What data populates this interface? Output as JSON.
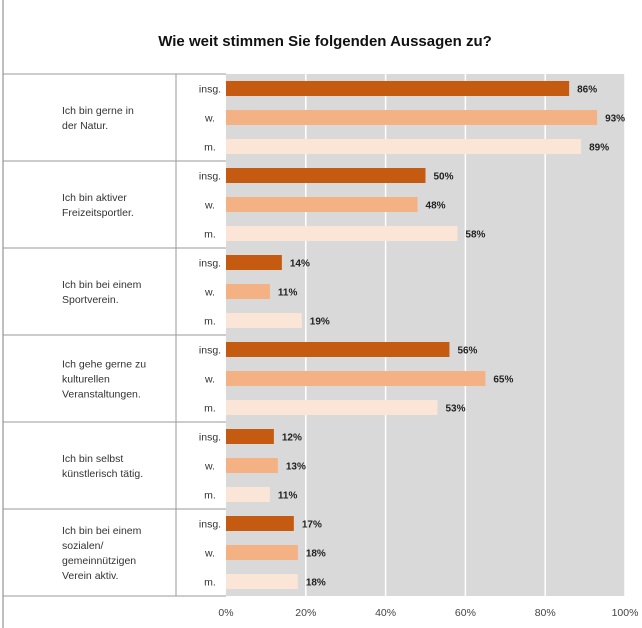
{
  "chart_data": {
    "type": "bar",
    "orientation": "horizontal",
    "title": "Wie weit stimmen Sie folgenden Aussagen zu?",
    "xlim": [
      0,
      100
    ],
    "x_ticks": [
      "0%",
      "20%",
      "40%",
      "60%",
      "80%",
      "100%"
    ],
    "grid": true,
    "legend": "none",
    "series_labels": [
      "insg.",
      "w.",
      "m."
    ],
    "colors": {
      "insg.": "#c55a11",
      "w.": "#f4b183",
      "m.": "#fbe5d6",
      "plot_background": "#d9d9d9",
      "gridline": "#ffffff"
    },
    "categories": [
      {
        "label": [
          "Ich bin gerne in",
          "der Natur."
        ],
        "values": [
          86,
          93,
          89
        ],
        "value_labels": [
          "86%",
          "93%",
          "89%"
        ]
      },
      {
        "label": [
          "Ich bin aktiver",
          "Freizeitsportler."
        ],
        "values": [
          50,
          48,
          58
        ],
        "value_labels": [
          "50%",
          "48%",
          "58%"
        ]
      },
      {
        "label": [
          "Ich bin bei einem",
          "Sportverein."
        ],
        "values": [
          14,
          11,
          19
        ],
        "value_labels": [
          "14%",
          "11%",
          "19%"
        ]
      },
      {
        "label": [
          "Ich gehe gerne zu",
          "kulturellen",
          "Veranstaltungen."
        ],
        "values": [
          56,
          65,
          53
        ],
        "value_labels": [
          "56%",
          "65%",
          "53%"
        ]
      },
      {
        "label": [
          "Ich bin selbst",
          "künstlerisch tätig."
        ],
        "values": [
          12,
          13,
          11
        ],
        "value_labels": [
          "12%",
          "13%",
          "11%"
        ]
      },
      {
        "label": [
          "Ich bin bei einem",
          "sozialen/",
          "gemeinnützigen",
          "Verein aktiv."
        ],
        "values": [
          17,
          18,
          18
        ],
        "value_labels": [
          "17%",
          "18%",
          "18%"
        ]
      }
    ]
  }
}
